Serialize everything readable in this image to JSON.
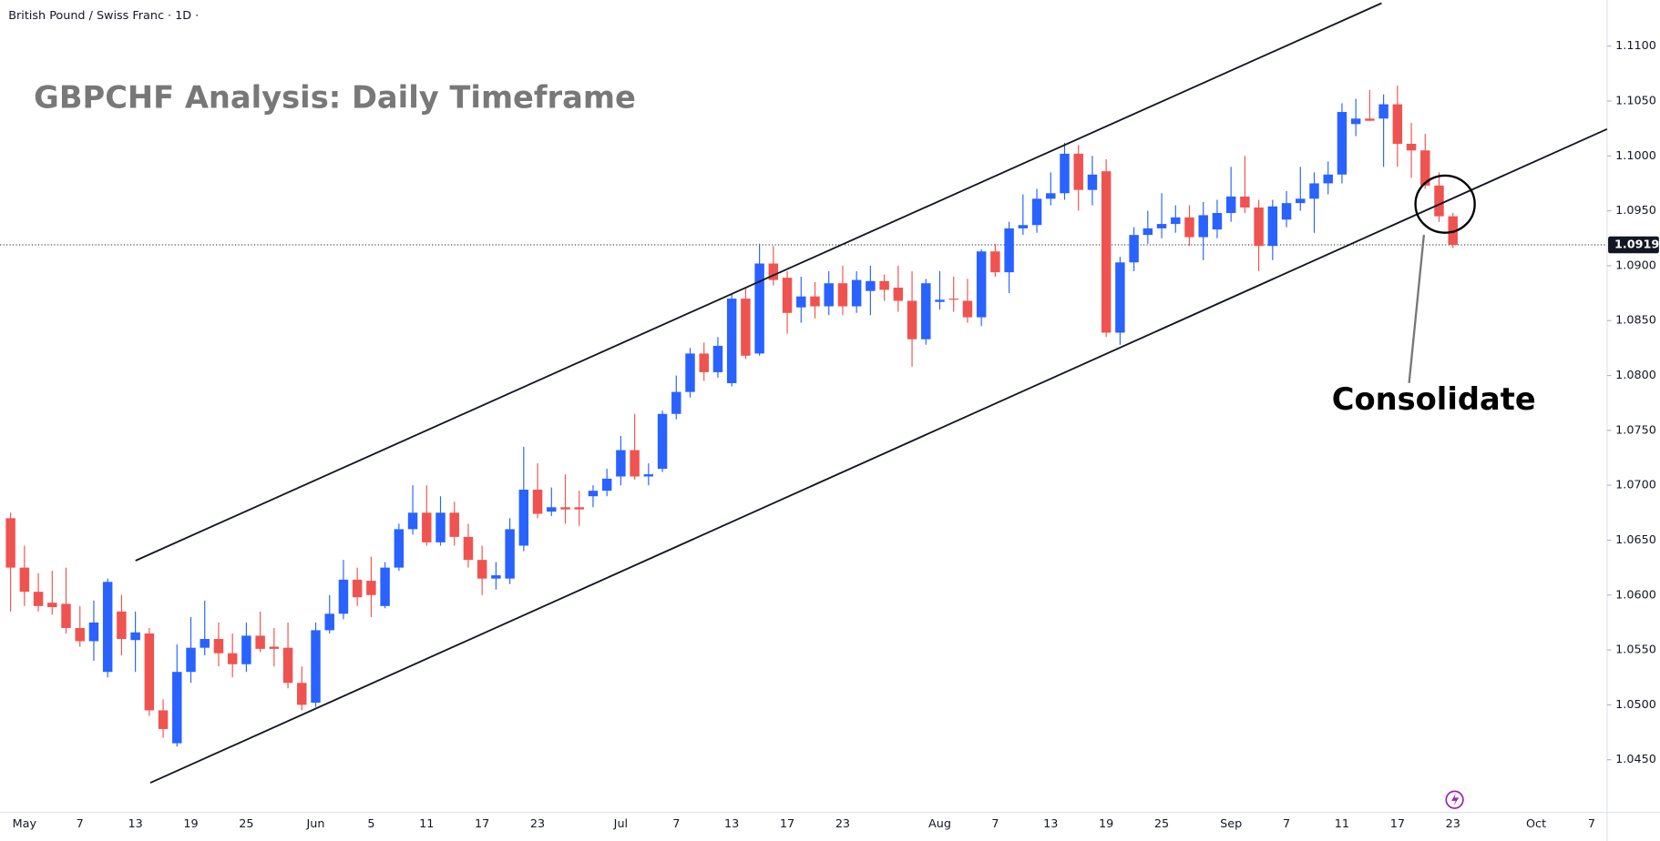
{
  "chart_data": {
    "type": "candlestick",
    "symbol_title": "British Pound / Swiss Franc · 1D ·",
    "title": "GBPCHF Analysis: Daily Timeframe",
    "annotation": "Consolidate",
    "categories": [
      "",
      "May",
      null,
      null,
      null,
      "7",
      null,
      null,
      null,
      "13",
      null,
      null,
      null,
      "19",
      null,
      null,
      null,
      "25",
      null,
      null,
      null,
      null,
      "Jun",
      null,
      null,
      null,
      "5",
      null,
      null,
      null,
      "11",
      null,
      null,
      null,
      "17",
      null,
      null,
      null,
      "23",
      null,
      null,
      null,
      null,
      null,
      "Jul",
      null,
      null,
      null,
      "7",
      null,
      null,
      null,
      "13",
      null,
      null,
      null,
      "17",
      null,
      null,
      null,
      "23",
      null,
      null,
      null,
      null,
      null,
      null,
      "Aug",
      null,
      null,
      null,
      "7",
      null,
      null,
      null,
      "13",
      null,
      null,
      null,
      "19",
      null,
      null,
      null,
      "25",
      null,
      null,
      null,
      null,
      "Sep",
      null,
      null,
      null,
      "7",
      null,
      null,
      null,
      "11",
      null,
      null,
      null,
      "17",
      null,
      null,
      null,
      "23",
      null,
      null,
      null,
      null,
      null,
      "Oct",
      null,
      null,
      null,
      "7"
    ],
    "open": [
      1.067,
      1.0625,
      1.0603,
      1.0593,
      1.0592,
      1.057,
      1.0558,
      1.053,
      1.0585,
      1.0559,
      1.0565,
      1.0495,
      1.0465,
      1.053,
      1.0552,
      1.056,
      1.0547,
      1.0537,
      1.0563,
      1.0553,
      1.0552,
      1.052,
      1.0502,
      1.0568,
      1.0583,
      1.0614,
      1.0613,
      1.059,
      1.0625,
      1.066,
      1.0675,
      1.0648,
      1.0675,
      1.0653,
      1.0632,
      1.0615,
      1.0615,
      1.0645,
      1.0696,
      1.0676,
      1.068,
      1.068,
      1.069,
      1.0695,
      1.0708,
      1.0732,
      1.0708,
      1.0715,
      1.0765,
      1.0785,
      1.082,
      1.0803,
      1.0793,
      1.087,
      1.082,
      1.0902,
      1.0889,
      1.0862,
      1.0872,
      1.0863,
      1.0884,
      1.0863,
      1.0877,
      1.0886,
      1.088,
      1.0868,
      1.0833,
      1.0867,
      1.087,
      1.0868,
      1.0853,
      1.0913,
      1.0894,
      1.0934,
      1.0937,
      1.0961,
      1.0966,
      1.1002,
      1.0969,
      1.0986,
      1.0839,
      1.0903,
      1.0928,
      1.0934,
      1.0938,
      1.0944,
      1.0926,
      1.0933,
      1.0948,
      1.0963,
      1.0953,
      1.0918,
      1.0942,
      1.0957,
      1.0961,
      1.0975,
      1.0983,
      1.1029,
      1.1034,
      1.1034,
      1.1047,
      1.1011,
      1.1005,
      1.0973,
      1.0945,
      null,
      null,
      null,
      null,
      null,
      null,
      null,
      null,
      null,
      null
    ],
    "high": [
      1.0675,
      1.0645,
      1.062,
      1.0622,
      1.0625,
      1.059,
      1.0595,
      1.0615,
      1.06,
      1.0585,
      1.057,
      1.0505,
      1.0555,
      1.058,
      1.0595,
      1.0575,
      1.0565,
      1.0575,
      1.0585,
      1.057,
      1.0575,
      1.0535,
      1.0575,
      1.06,
      1.0632,
      1.0625,
      1.0635,
      1.063,
      1.0665,
      1.07,
      1.07,
      1.069,
      1.0685,
      1.0665,
      1.0645,
      1.063,
      1.067,
      1.0735,
      1.072,
      1.0698,
      1.071,
      1.0695,
      1.07,
      1.0715,
      1.0745,
      1.0765,
      1.072,
      1.0768,
      1.08,
      1.0825,
      1.083,
      1.0835,
      1.0875,
      1.088,
      1.092,
      1.0918,
      1.0895,
      1.089,
      1.0885,
      1.0895,
      1.09,
      1.0895,
      1.09,
      1.0892,
      1.09,
      1.0895,
      1.0888,
      1.0895,
      1.089,
      1.0888,
      1.0915,
      1.092,
      1.094,
      1.0965,
      1.097,
      1.0985,
      1.1012,
      1.101,
      1.1,
      1.0997,
      1.0908,
      1.0935,
      1.095,
      1.0966,
      1.0955,
      1.0955,
      1.0958,
      1.096,
      1.099,
      1.1,
      1.096,
      1.096,
      1.0968,
      1.099,
      1.0985,
      1.0995,
      1.1048,
      1.1052,
      1.106,
      1.1056,
      1.1064,
      1.103,
      1.102,
      1.0985,
      1.0948,
      null,
      null,
      null,
      null,
      null,
      null,
      null,
      null,
      null,
      null
    ],
    "low": [
      1.0585,
      1.059,
      1.0585,
      1.0582,
      1.0565,
      1.0553,
      1.054,
      1.0525,
      1.0545,
      1.053,
      1.049,
      1.047,
      1.0462,
      1.052,
      1.0545,
      1.0535,
      1.0525,
      1.053,
      1.0548,
      1.0535,
      1.0515,
      1.0495,
      1.0498,
      1.0565,
      1.0578,
      1.059,
      1.058,
      1.0588,
      1.0622,
      1.0655,
      1.0645,
      1.0645,
      1.0645,
      1.0625,
      1.06,
      1.0605,
      1.061,
      1.064,
      1.067,
      1.0672,
      1.0665,
      1.0663,
      1.068,
      1.069,
      1.07,
      1.0705,
      1.07,
      1.0712,
      1.076,
      1.078,
      1.0795,
      1.0798,
      1.079,
      1.0815,
      1.0818,
      1.0882,
      1.0838,
      1.0848,
      1.0852,
      1.0855,
      1.0855,
      1.0857,
      1.0855,
      1.0868,
      1.0858,
      1.0808,
      1.0828,
      1.086,
      1.0858,
      1.0848,
      1.0845,
      1.089,
      1.0875,
      1.0928,
      1.093,
      1.0955,
      1.096,
      1.095,
      1.0955,
      1.0835,
      1.0828,
      1.0895,
      1.092,
      1.0925,
      1.093,
      1.0918,
      1.0905,
      1.0925,
      1.094,
      1.0948,
      1.0895,
      1.0905,
      1.0935,
      1.095,
      1.093,
      1.0965,
      1.0975,
      1.1018,
      1.1032,
      1.099,
      1.099,
      1.098,
      1.097,
      1.094,
      1.0916,
      null,
      null,
      null,
      null,
      null,
      null,
      null,
      null,
      null,
      null
    ],
    "close": [
      1.0625,
      1.0603,
      1.059,
      1.0589,
      1.057,
      1.0558,
      1.0575,
      1.0612,
      1.056,
      1.0566,
      1.0495,
      1.0478,
      1.053,
      1.0552,
      1.056,
      1.0547,
      1.0537,
      1.0563,
      1.0551,
      1.0551,
      1.052,
      1.05,
      1.0568,
      1.0583,
      1.0614,
      1.0598,
      1.06,
      1.0625,
      1.066,
      1.0675,
      1.0648,
      1.0675,
      1.0653,
      1.0632,
      1.0615,
      1.0618,
      1.066,
      1.0696,
      1.0674,
      1.068,
      1.0678,
      1.0678,
      1.0695,
      1.0706,
      1.0732,
      1.0708,
      1.071,
      1.0765,
      1.0785,
      1.082,
      1.0803,
      1.0827,
      1.087,
      1.0818,
      1.0902,
      1.0887,
      1.0857,
      1.0872,
      1.0863,
      1.0884,
      1.0863,
      1.0887,
      1.0886,
      1.0878,
      1.0868,
      1.0833,
      1.0884,
      1.0869,
      1.0869,
      1.0853,
      1.0913,
      1.0894,
      1.0934,
      1.0937,
      1.0961,
      1.0966,
      1.1002,
      1.0969,
      1.0983,
      1.0839,
      1.0903,
      1.0928,
      1.0934,
      1.0938,
      1.0944,
      1.0926,
      1.0946,
      1.0948,
      1.0963,
      1.0953,
      1.0918,
      1.0954,
      1.0957,
      1.0961,
      1.0975,
      1.0983,
      1.104,
      1.1034,
      1.1032,
      1.1047,
      1.1011,
      1.1005,
      1.0973,
      1.0945,
      1.0919,
      null,
      null,
      null,
      null,
      null,
      null,
      null,
      null,
      null,
      null
    ],
    "up_color": "#2962ff",
    "down_color": "#ef5350",
    "last_price": 1.0919,
    "ylim": [
      1.0402,
      1.1142
    ],
    "yticks": [
      {
        "value": 1.045,
        "label": "1.0450"
      },
      {
        "value": 1.05,
        "label": "1.0500"
      },
      {
        "value": 1.055,
        "label": "1.0550"
      },
      {
        "value": 1.06,
        "label": "1.0600"
      },
      {
        "value": 1.065,
        "label": "1.0650"
      },
      {
        "value": 1.07,
        "label": "1.0700"
      },
      {
        "value": 1.075,
        "label": "1.0750"
      },
      {
        "value": 1.08,
        "label": "1.0800"
      },
      {
        "value": 1.085,
        "label": "1.0850"
      },
      {
        "value": 1.09,
        "label": "1.0900"
      },
      {
        "value": 1.095,
        "label": "1.0950"
      },
      {
        "value": 1.1,
        "label": "1.1000"
      },
      {
        "value": 1.105,
        "label": "1.1050"
      },
      {
        "value": 1.11,
        "label": "1.1100"
      }
    ],
    "grid": false
  }
}
